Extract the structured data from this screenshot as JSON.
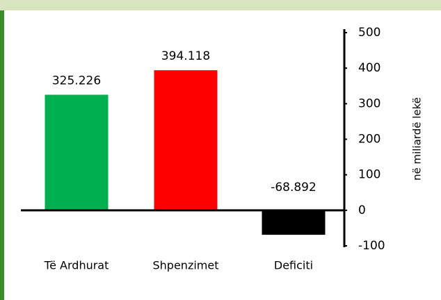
{
  "chart_data": {
    "type": "bar",
    "categories": [
      "Të Ardhurat",
      "Shpenzimet",
      "Deficiti"
    ],
    "values": [
      325.226,
      394.118,
      -68.892
    ],
    "colors": [
      "#00b050",
      "#ff0000",
      "#000000"
    ],
    "ylim": [
      -100,
      500
    ],
    "yticks": [
      -100,
      0,
      100,
      200,
      300,
      400,
      500
    ],
    "ylabel": "në miliardë lekë"
  }
}
